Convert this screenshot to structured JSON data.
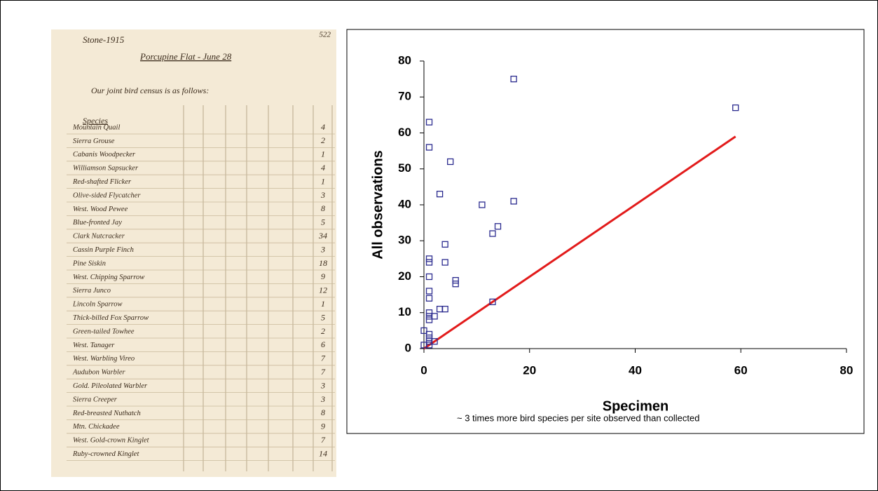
{
  "notebook": {
    "header": "Stone-1915",
    "page_number": "522",
    "title": "Porcupine Flat - June 28",
    "intro": "Our joint bird census is as follows:",
    "column_header": "Species",
    "rows": [
      {
        "species": "Mountain Quail",
        "total": "4"
      },
      {
        "species": "Sierra Grouse",
        "total": "2"
      },
      {
        "species": "Cabanis Woodpecker",
        "total": "1"
      },
      {
        "species": "Williamson Sapsucker",
        "total": "4"
      },
      {
        "species": "Red-shafted Flicker",
        "total": "1"
      },
      {
        "species": "Olive-sided Flycatcher",
        "total": "3"
      },
      {
        "species": "West. Wood Pewee",
        "total": "8"
      },
      {
        "species": "Blue-fronted Jay",
        "total": "5"
      },
      {
        "species": "Clark Nutcracker",
        "total": "34"
      },
      {
        "species": "Cassin Purple Finch",
        "total": "3"
      },
      {
        "species": "Pine Siskin",
        "total": "18"
      },
      {
        "species": "West. Chipping Sparrow",
        "total": "9"
      },
      {
        "species": "Sierra Junco",
        "total": "12"
      },
      {
        "species": "Lincoln Sparrow",
        "total": "1"
      },
      {
        "species": "Thick-billed Fox Sparrow",
        "total": "5"
      },
      {
        "species": "Green-tailed Towhee",
        "total": "2"
      },
      {
        "species": "West. Tanager",
        "total": "6"
      },
      {
        "species": "West. Warbling Vireo",
        "total": "7"
      },
      {
        "species": "Audubon Warbler",
        "total": "7"
      },
      {
        "species": "Gold. Pileolated Warbler",
        "total": "3"
      },
      {
        "species": "Sierra Creeper",
        "total": "3"
      },
      {
        "species": "Red-breasted Nuthatch",
        "total": "8"
      },
      {
        "species": "Mtn. Chickadee",
        "total": "9"
      },
      {
        "species": "West. Gold-crown Kinglet",
        "total": "7"
      },
      {
        "species": "Ruby-crowned Kinglet",
        "total": "14"
      }
    ]
  },
  "chart_data": {
    "type": "scatter",
    "x_label": "Specimen",
    "y_label": "All observations",
    "caption": "~ 3 times more bird species per site observed than collected",
    "x": [
      0,
      0,
      1,
      1,
      1,
      1,
      1,
      1,
      1,
      1,
      1,
      1,
      1,
      1,
      1,
      1,
      2,
      2,
      3,
      3,
      4,
      4,
      4,
      5,
      6,
      6,
      11,
      13,
      13,
      14,
      17,
      17,
      59
    ],
    "y": [
      1,
      5,
      63,
      56,
      25,
      24,
      20,
      16,
      14,
      10,
      9,
      8,
      4,
      3,
      2,
      1,
      9,
      2,
      43,
      11,
      11,
      29,
      24,
      52,
      19,
      18,
      40,
      32,
      13,
      34,
      75,
      41,
      67
    ],
    "color": "#2b2b8f",
    "reference_line": {
      "x": [
        0,
        59
      ],
      "y": [
        0,
        59
      ],
      "color": "#e21b1b"
    },
    "xlim": [
      0,
      80
    ],
    "ylim": [
      0,
      80
    ],
    "xticks": [
      0,
      20,
      40,
      60,
      80
    ],
    "yticks": [
      0,
      10,
      20,
      30,
      40,
      50,
      60,
      70,
      80
    ]
  }
}
